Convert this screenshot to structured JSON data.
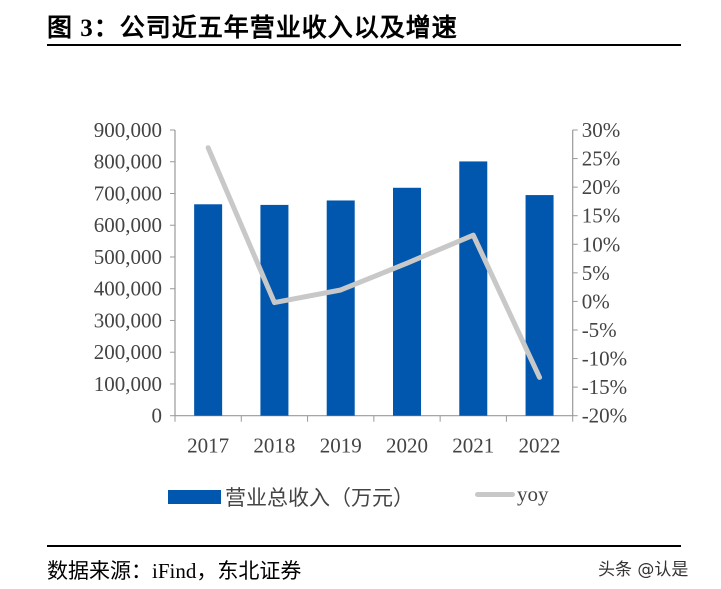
{
  "title": "图  3：公司近五年营业收入以及增速",
  "source": "数据来源：iFind，东北证券",
  "watermark": "头条 @认是",
  "chart_data": {
    "type": "bar+line",
    "categories": [
      "2017",
      "2018",
      "2019",
      "2020",
      "2021",
      "2022"
    ],
    "series": [
      {
        "name": "营业总收入（万元）",
        "type": "bar",
        "axis": "left",
        "color": "#0057AD",
        "values": [
          666000,
          664000,
          678000,
          718000,
          801000,
          695000
        ]
      },
      {
        "name": "yoy",
        "type": "line",
        "axis": "right",
        "color": "#C8C8C8",
        "values": [
          26.9,
          -0.2,
          2.0,
          6.7,
          11.6,
          -13.3
        ]
      }
    ],
    "left_axis": {
      "ylim": [
        0,
        900000
      ],
      "ticks": [
        "0",
        "100,000",
        "200,000",
        "300,000",
        "400,000",
        "500,000",
        "600,000",
        "700,000",
        "800,000",
        "900,000"
      ]
    },
    "right_axis": {
      "ylim": [
        -20,
        30
      ],
      "unit": "%",
      "ticks": [
        "-20%",
        "-15%",
        "-10%",
        "-5%",
        "0%",
        "5%",
        "10%",
        "15%",
        "20%",
        "25%",
        "30%"
      ]
    },
    "grid": false,
    "legend": "bottom"
  }
}
